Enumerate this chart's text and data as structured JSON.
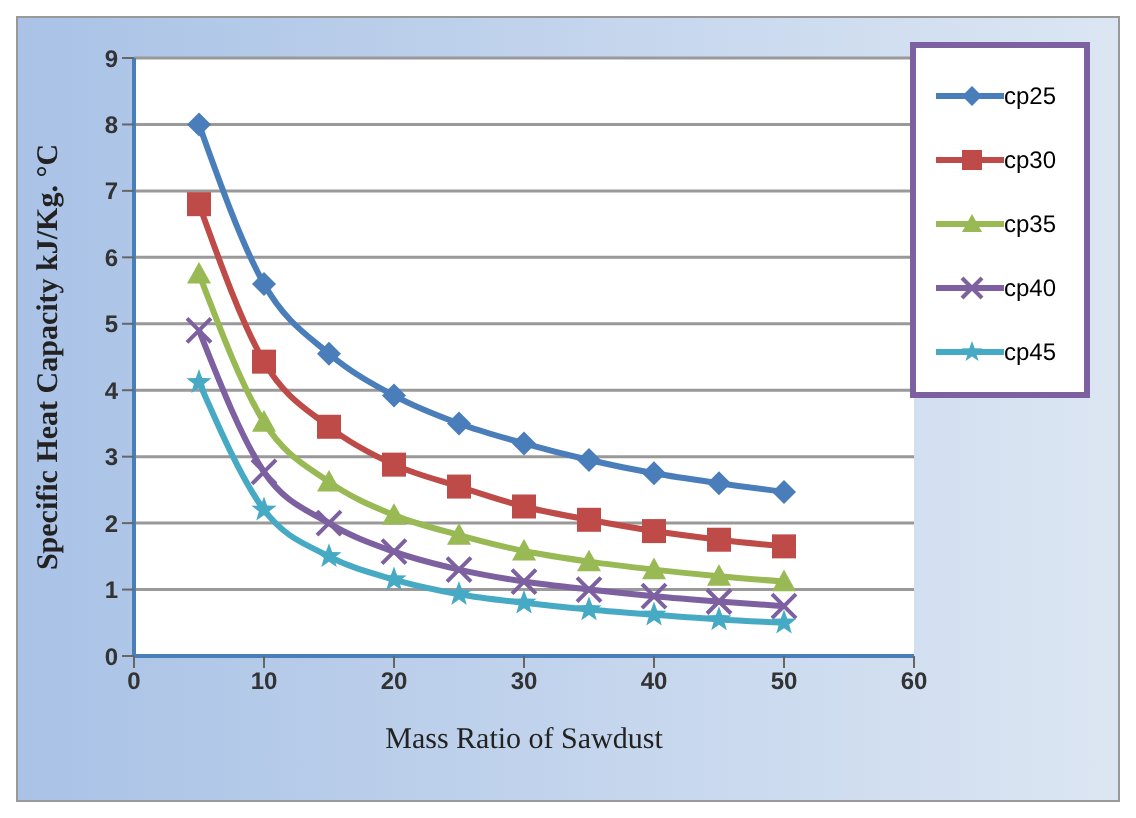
{
  "chart_data": {
    "type": "line",
    "xlabel": "Mass Ratio of Sawdust",
    "ylabel": "Specific Heat Capacity kJ/Kg. °C",
    "x": [
      5,
      10,
      15,
      20,
      25,
      30,
      35,
      40,
      45,
      50
    ],
    "xlim": [
      0,
      60
    ],
    "xticks": [
      0,
      10,
      20,
      30,
      40,
      50,
      60
    ],
    "ylim": [
      0,
      9
    ],
    "yticks": [
      0,
      1,
      2,
      3,
      4,
      5,
      6,
      7,
      8,
      9
    ],
    "grid": "y",
    "legend": "top right",
    "line_style": "solid",
    "series": [
      {
        "name": "cp25",
        "color": "#4a7ebb",
        "marker": "diamond",
        "values": [
          8.0,
          5.6,
          4.55,
          3.92,
          3.5,
          3.2,
          2.95,
          2.75,
          2.6,
          2.47
        ]
      },
      {
        "name": "cp30",
        "color": "#be4b48",
        "marker": "square",
        "values": [
          6.8,
          4.43,
          3.45,
          2.88,
          2.55,
          2.25,
          2.05,
          1.88,
          1.75,
          1.65
        ]
      },
      {
        "name": "cp35",
        "color": "#98b954",
        "marker": "triangle",
        "values": [
          5.75,
          3.52,
          2.62,
          2.12,
          1.82,
          1.58,
          1.42,
          1.3,
          1.2,
          1.12
        ]
      },
      {
        "name": "cp40",
        "color": "#7d60a0",
        "marker": "cross",
        "values": [
          4.9,
          2.77,
          2.0,
          1.57,
          1.3,
          1.12,
          1.0,
          0.9,
          0.82,
          0.75
        ]
      },
      {
        "name": "cp45",
        "color": "#46aac5",
        "marker": "star",
        "values": [
          4.12,
          2.2,
          1.5,
          1.15,
          0.93,
          0.8,
          0.7,
          0.62,
          0.55,
          0.5
        ]
      }
    ]
  }
}
